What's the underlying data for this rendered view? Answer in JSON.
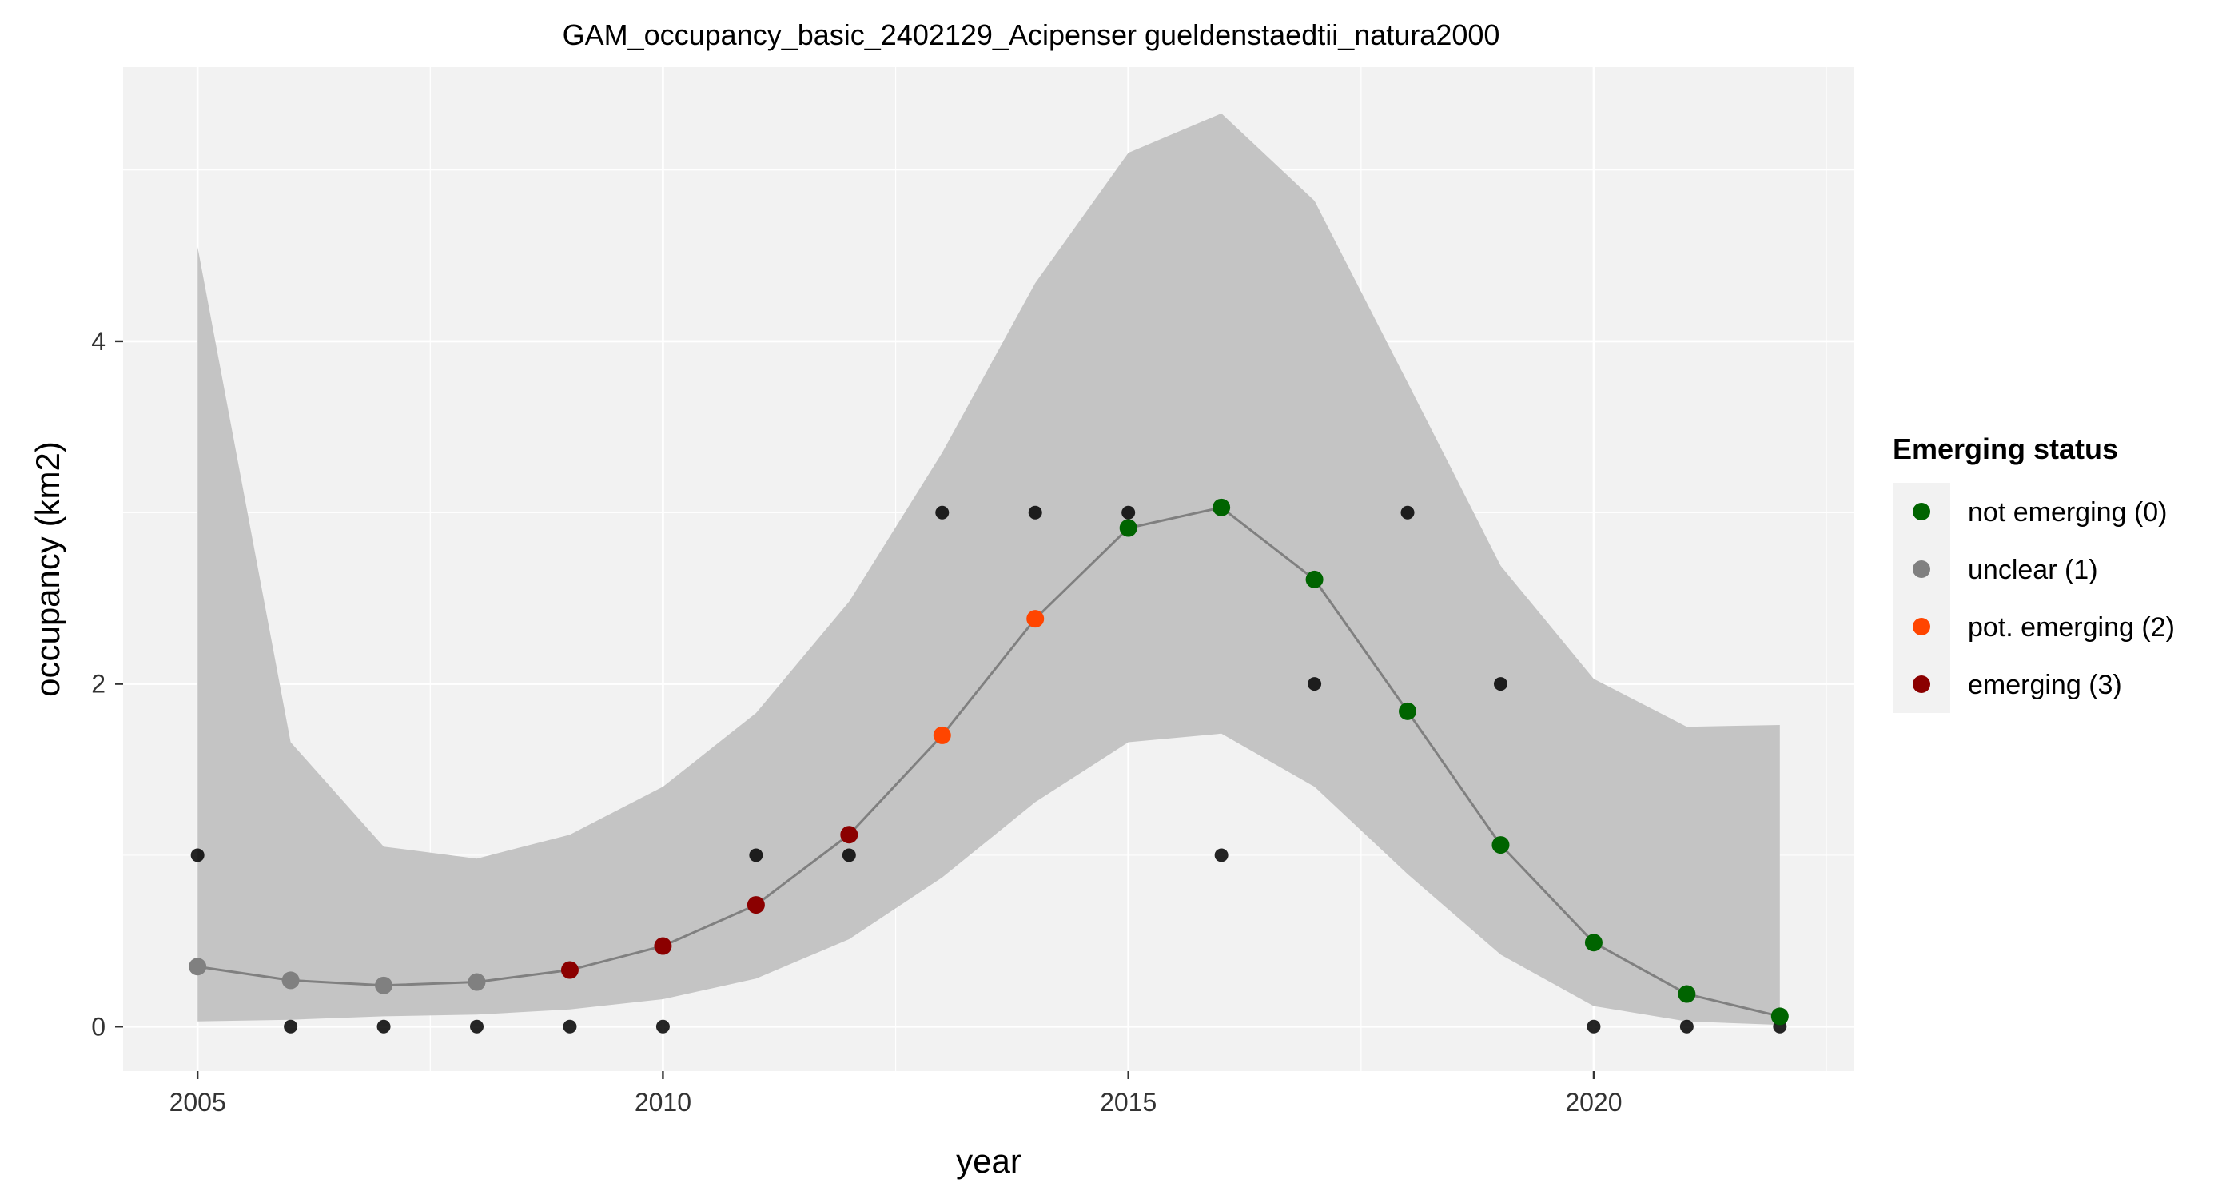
{
  "chart_data": {
    "type": "line",
    "title": "GAM_occupancy_basic_2402129_Acipenser gueldenstaedtii_natura2000",
    "xlabel": "year",
    "ylabel": "occupancy (km2)",
    "xlim": [
      2004.2,
      2022.8
    ],
    "ylim": [
      -0.26,
      5.6
    ],
    "x_ticks": [
      2005,
      2010,
      2015,
      2020
    ],
    "y_ticks": [
      0,
      2,
      4
    ],
    "x_tick_labels": [
      "2005",
      "2010",
      "2015",
      "2020"
    ],
    "y_tick_labels": [
      "0",
      "2",
      "4"
    ],
    "grid": true,
    "legend_position": "right",
    "legend": {
      "title": "Emerging status",
      "entries": [
        {
          "label": "not emerging (0)",
          "color": "#006400"
        },
        {
          "label": "unclear (1)",
          "color": "#808080"
        },
        {
          "label": "pot. emerging (2)",
          "color": "#FF4500"
        },
        {
          "label": "emerging (3)",
          "color": "#8B0000"
        }
      ]
    },
    "confidence_band": {
      "color": "#c4c4c4",
      "x": [
        2005,
        2006,
        2007,
        2008,
        2009,
        2010,
        2011,
        2012,
        2013,
        2014,
        2015,
        2016,
        2017,
        2018,
        2019,
        2020,
        2021,
        2022
      ],
      "lower": [
        0.03,
        0.04,
        0.06,
        0.07,
        0.1,
        0.16,
        0.28,
        0.51,
        0.87,
        1.31,
        1.66,
        1.71,
        1.4,
        0.89,
        0.42,
        0.12,
        0.03,
        0.01
      ],
      "upper": [
        4.55,
        1.66,
        1.05,
        0.98,
        1.12,
        1.4,
        1.83,
        2.48,
        3.35,
        4.34,
        5.1,
        5.33,
        4.82,
        3.76,
        2.69,
        2.03,
        1.75,
        1.76
      ]
    },
    "series": [
      {
        "kind": "fitted",
        "line_color": "#808080",
        "x": [
          2005,
          2006,
          2007,
          2008,
          2009,
          2010,
          2011,
          2012,
          2013,
          2014,
          2015,
          2016,
          2017,
          2018,
          2019,
          2020,
          2021,
          2022
        ],
        "y": [
          0.35,
          0.27,
          0.24,
          0.26,
          0.33,
          0.47,
          0.71,
          1.12,
          1.7,
          2.38,
          2.91,
          3.03,
          2.61,
          1.84,
          1.06,
          0.49,
          0.19,
          0.06
        ],
        "status": [
          1,
          1,
          1,
          1,
          3,
          3,
          3,
          3,
          2,
          2,
          0,
          0,
          0,
          0,
          0,
          0,
          0,
          0
        ]
      },
      {
        "kind": "observed",
        "color": "#000000",
        "x": [
          2005,
          2006,
          2007,
          2008,
          2009,
          2010,
          2011,
          2012,
          2013,
          2014,
          2015,
          2016,
          2017,
          2018,
          2019,
          2020,
          2021,
          2022
        ],
        "y": [
          1,
          0,
          0,
          0,
          0,
          0,
          1,
          1,
          3,
          3,
          3,
          1,
          2,
          3,
          2,
          0,
          0,
          0
        ]
      }
    ],
    "status_colors": {
      "0": "#006400",
      "1": "#808080",
      "2": "#FF4500",
      "3": "#8B0000"
    }
  }
}
